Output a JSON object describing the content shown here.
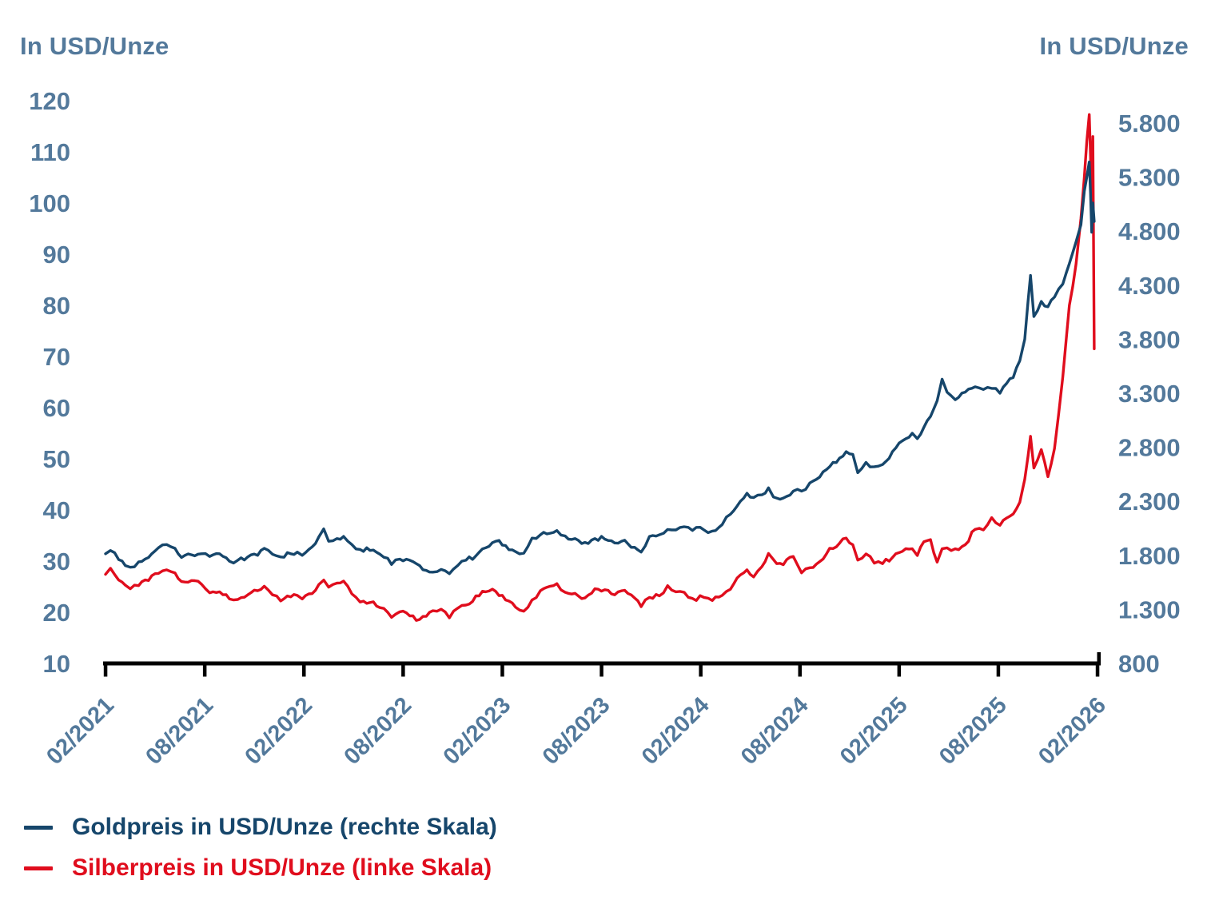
{
  "colors": {
    "gold_line": "#16466b",
    "silver_line": "#e00d1d",
    "axis_label": "#53799b",
    "axis_line": "#000000",
    "background": "#ffffff"
  },
  "legend": [
    {
      "key": "gold",
      "label": "Goldpreis in USD/Unze (rechte Skala)"
    },
    {
      "key": "silver",
      "label": "Silberpreis in USD/Unze (linke Skala)"
    }
  ],
  "chart_data": {
    "type": "line",
    "title": "",
    "left_axis": {
      "title": "In USD/Unze",
      "series": "Silberpreis",
      "range": [
        10,
        120
      ],
      "ticks": [
        120,
        110,
        100,
        90,
        80,
        70,
        60,
        50,
        40,
        30,
        20,
        10
      ]
    },
    "right_axis": {
      "title": "In USD/Unze",
      "series": "Goldpreis",
      "range": [
        800,
        5800
      ],
      "ticks": [
        {
          "label": "5.800",
          "value": 5800
        },
        {
          "label": "5.300",
          "value": 5300
        },
        {
          "label": "4.800",
          "value": 4800
        },
        {
          "label": "4.300",
          "value": 4300
        },
        {
          "label": "3.800",
          "value": 3800
        },
        {
          "label": "3.300",
          "value": 3300
        },
        {
          "label": "2.800",
          "value": 2800
        },
        {
          "label": "2.300",
          "value": 2300
        },
        {
          "label": "1.800",
          "value": 1800
        },
        {
          "label": "1.300",
          "value": 1300
        },
        {
          "label": "800",
          "value": 800
        }
      ]
    },
    "x_axis": {
      "tick_labels": [
        "02/2021",
        "08/2021",
        "02/2022",
        "08/2022",
        "02/2023",
        "08/2023",
        "02/2024",
        "08/2024",
        "02/2025",
        "08/2025",
        "02/2026"
      ],
      "unit_of_t": "months after 02/2021"
    },
    "series": [
      {
        "name": "Goldpreis in USD/Unze (rechte Skala)",
        "axis": "right",
        "color_key": "gold_line"
      },
      {
        "name": "Silberpreis in USD/Unze (linke Skala)",
        "axis": "left",
        "color_key": "silver_line"
      }
    ],
    "points_columns": [
      "t_months_after_02_2021",
      "gold_usd_per_oz",
      "silver_usd_per_oz"
    ],
    "points": [
      [
        0.0,
        1815,
        27.4
      ],
      [
        0.3,
        1845,
        28.6
      ],
      [
        0.8,
        1760,
        26.3
      ],
      [
        1.2,
        1705,
        25.3
      ],
      [
        1.5,
        1690,
        24.6
      ],
      [
        2.0,
        1740,
        25.2
      ],
      [
        2.6,
        1780,
        26.2
      ],
      [
        3.2,
        1870,
        27.6
      ],
      [
        3.7,
        1900,
        28.3
      ],
      [
        4.2,
        1865,
        27.7
      ],
      [
        4.6,
        1780,
        26.0
      ],
      [
        5.2,
        1805,
        26.2
      ],
      [
        5.8,
        1815,
        25.5
      ],
      [
        6.3,
        1790,
        23.8
      ],
      [
        6.9,
        1815,
        24.0
      ],
      [
        7.5,
        1745,
        22.6
      ],
      [
        8.0,
        1755,
        22.5
      ],
      [
        8.6,
        1785,
        23.4
      ],
      [
        9.2,
        1800,
        24.2
      ],
      [
        9.6,
        1865,
        25.1
      ],
      [
        10.1,
        1810,
        23.4
      ],
      [
        10.6,
        1785,
        22.2
      ],
      [
        11.2,
        1815,
        23.0
      ],
      [
        11.6,
        1830,
        23.3
      ],
      [
        11.9,
        1800,
        22.6
      ],
      [
        12.3,
        1855,
        23.6
      ],
      [
        12.7,
        1910,
        24.3
      ],
      [
        12.9,
        1970,
        25.4
      ],
      [
        13.2,
        2045,
        26.3
      ],
      [
        13.5,
        1930,
        24.9
      ],
      [
        14.0,
        1955,
        25.7
      ],
      [
        14.4,
        1975,
        26.1
      ],
      [
        14.9,
        1900,
        23.6
      ],
      [
        15.4,
        1855,
        22.0
      ],
      [
        16.0,
        1845,
        21.9
      ],
      [
        16.6,
        1810,
        20.9
      ],
      [
        17.3,
        1715,
        19.0
      ],
      [
        17.8,
        1765,
        20.1
      ],
      [
        18.4,
        1755,
        19.3
      ],
      [
        19.0,
        1705,
        18.6
      ],
      [
        19.4,
        1660,
        19.2
      ],
      [
        19.8,
        1645,
        20.3
      ],
      [
        20.3,
        1670,
        20.6
      ],
      [
        20.8,
        1630,
        18.9
      ],
      [
        21.3,
        1705,
        20.8
      ],
      [
        21.8,
        1755,
        21.4
      ],
      [
        22.4,
        1795,
        23.2
      ],
      [
        23.0,
        1870,
        24.0
      ],
      [
        23.6,
        1930,
        24.1
      ],
      [
        24.2,
        1890,
        22.4
      ],
      [
        24.8,
        1835,
        21.0
      ],
      [
        25.3,
        1820,
        20.2
      ],
      [
        25.8,
        1960,
        22.4
      ],
      [
        26.3,
        1990,
        24.2
      ],
      [
        26.9,
        2005,
        25.1
      ],
      [
        27.3,
        2030,
        25.6
      ],
      [
        27.8,
        1980,
        23.9
      ],
      [
        28.4,
        1955,
        23.7
      ],
      [
        29.0,
        1920,
        22.8
      ],
      [
        29.6,
        1955,
        24.6
      ],
      [
        30.2,
        1950,
        24.4
      ],
      [
        30.8,
        1915,
        23.4
      ],
      [
        31.4,
        1940,
        24.3
      ],
      [
        32.0,
        1875,
        22.8
      ],
      [
        32.4,
        1830,
        21.1
      ],
      [
        32.9,
        1975,
        22.9
      ],
      [
        33.5,
        1990,
        23.2
      ],
      [
        34.0,
        2040,
        25.2
      ],
      [
        34.5,
        2035,
        24.0
      ],
      [
        35.0,
        2065,
        23.9
      ],
      [
        35.5,
        2030,
        22.7
      ],
      [
        36.2,
        2035,
        22.9
      ],
      [
        36.7,
        2025,
        22.3
      ],
      [
        37.3,
        2085,
        23.3
      ],
      [
        37.8,
        2180,
        24.5
      ],
      [
        38.4,
        2300,
        27.3
      ],
      [
        38.8,
        2375,
        28.3
      ],
      [
        39.2,
        2335,
        26.9
      ],
      [
        39.7,
        2360,
        28.9
      ],
      [
        40.1,
        2425,
        31.5
      ],
      [
        40.4,
        2340,
        30.3
      ],
      [
        41.0,
        2330,
        29.3
      ],
      [
        41.6,
        2395,
        30.9
      ],
      [
        42.1,
        2395,
        27.7
      ],
      [
        42.6,
        2470,
        28.7
      ],
      [
        43.2,
        2525,
        29.9
      ],
      [
        43.8,
        2620,
        32.5
      ],
      [
        44.4,
        2700,
        33.5
      ],
      [
        44.8,
        2760,
        34.5
      ],
      [
        45.2,
        2735,
        33.2
      ],
      [
        45.5,
        2565,
        30.2
      ],
      [
        46.0,
        2660,
        31.4
      ],
      [
        46.5,
        2620,
        29.6
      ],
      [
        47.0,
        2640,
        29.5
      ],
      [
        47.6,
        2760,
        30.7
      ],
      [
        48.2,
        2860,
        31.9
      ],
      [
        48.8,
        2930,
        32.4
      ],
      [
        49.1,
        2880,
        31.1
      ],
      [
        49.5,
        2985,
        33.8
      ],
      [
        49.9,
        3085,
        34.2
      ],
      [
        50.3,
        3230,
        29.8
      ],
      [
        50.6,
        3430,
        32.4
      ],
      [
        50.9,
        3310,
        32.6
      ],
      [
        51.4,
        3240,
        32.4
      ],
      [
        52.0,
        3310,
        33.2
      ],
      [
        52.6,
        3360,
        36.2
      ],
      [
        53.1,
        3335,
        36.1
      ],
      [
        53.6,
        3345,
        38.5
      ],
      [
        54.1,
        3300,
        37.0
      ],
      [
        54.5,
        3390,
        38.4
      ],
      [
        54.9,
        3445,
        39.2
      ],
      [
        55.3,
        3600,
        41.5
      ],
      [
        55.6,
        3800,
        46.0
      ],
      [
        55.8,
        4150,
        50.5
      ],
      [
        55.95,
        4390,
        54.4
      ],
      [
        56.15,
        4010,
        48.2
      ],
      [
        56.6,
        4150,
        51.8
      ],
      [
        57.0,
        4100,
        46.5
      ],
      [
        57.4,
        4190,
        52.0
      ],
      [
        57.9,
        4310,
        66.0
      ],
      [
        58.3,
        4500,
        80.0
      ],
      [
        58.7,
        4700,
        88.0
      ],
      [
        59.0,
        4860,
        97.0
      ],
      [
        59.2,
        5170,
        105.0
      ],
      [
        59.35,
        5300,
        112.0
      ],
      [
        59.5,
        5440,
        117.3
      ],
      [
        59.58,
        5150,
        109.0
      ],
      [
        59.65,
        4790,
        96.0
      ],
      [
        59.72,
        5060,
        113.0
      ],
      [
        59.8,
        4890,
        71.5
      ]
    ]
  }
}
